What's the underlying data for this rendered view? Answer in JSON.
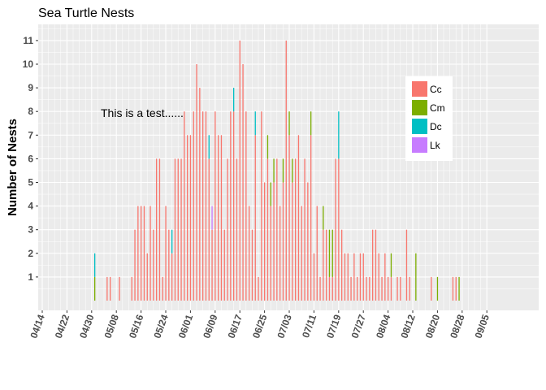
{
  "chart_data": {
    "type": "bar",
    "title": "Sea Turtle Nests",
    "xlabel": "",
    "ylabel": "Number of Nests",
    "annotation": "This is a test......",
    "ylim": [
      0,
      11.6
    ],
    "yticks": [
      1,
      2,
      3,
      4,
      5,
      6,
      7,
      8,
      9,
      10,
      11
    ],
    "x_start": "04/14",
    "x_end": "09/05",
    "xtick_labels": [
      "04/14",
      "04/22",
      "04/30",
      "05/08",
      "05/16",
      "05/24",
      "06/01",
      "06/09",
      "06/17",
      "06/25",
      "07/03",
      "07/11",
      "07/19",
      "07/27",
      "08/04",
      "08/12",
      "08/20",
      "08/28",
      "09/05"
    ],
    "grid": true,
    "legend_position": "top-right",
    "stacked": true,
    "series": [
      {
        "name": "Cc",
        "color": "#F8766D",
        "points": [
          [
            "05/05",
            1
          ],
          [
            "05/06",
            1
          ],
          [
            "05/09",
            1
          ],
          [
            "05/13",
            1
          ],
          [
            "05/14",
            3
          ],
          [
            "05/15",
            4
          ],
          [
            "05/16",
            4
          ],
          [
            "05/17",
            4
          ],
          [
            "05/18",
            2
          ],
          [
            "05/19",
            4
          ],
          [
            "05/20",
            3
          ],
          [
            "05/21",
            6
          ],
          [
            "05/22",
            6
          ],
          [
            "05/23",
            1
          ],
          [
            "05/24",
            4
          ],
          [
            "05/25",
            3
          ],
          [
            "05/26",
            2
          ],
          [
            "05/27",
            6
          ],
          [
            "05/28",
            6
          ],
          [
            "05/29",
            6
          ],
          [
            "05/30",
            8
          ],
          [
            "05/31",
            7
          ],
          [
            "06/01",
            7
          ],
          [
            "06/02",
            8
          ],
          [
            "06/03",
            10
          ],
          [
            "06/04",
            9
          ],
          [
            "06/05",
            8
          ],
          [
            "06/06",
            8
          ],
          [
            "06/07",
            6
          ],
          [
            "06/08",
            3
          ],
          [
            "06/09",
            8
          ],
          [
            "06/10",
            7
          ],
          [
            "06/11",
            7
          ],
          [
            "06/12",
            3
          ],
          [
            "06/13",
            6
          ],
          [
            "06/14",
            8
          ],
          [
            "06/15",
            8
          ],
          [
            "06/16",
            6
          ],
          [
            "06/17",
            11
          ],
          [
            "06/18",
            10
          ],
          [
            "06/19",
            8
          ],
          [
            "06/20",
            4
          ],
          [
            "06/21",
            3
          ],
          [
            "06/22",
            7
          ],
          [
            "06/23",
            1
          ],
          [
            "06/24",
            8
          ],
          [
            "06/25",
            5
          ],
          [
            "06/26",
            6
          ],
          [
            "06/27",
            4
          ],
          [
            "06/28",
            5
          ],
          [
            "06/29",
            6
          ],
          [
            "06/30",
            4
          ],
          [
            "07/01",
            5
          ],
          [
            "07/02",
            11
          ],
          [
            "07/03",
            7
          ],
          [
            "07/04",
            5
          ],
          [
            "07/05",
            6
          ],
          [
            "07/06",
            7
          ],
          [
            "07/07",
            4
          ],
          [
            "07/08",
            6
          ],
          [
            "07/09",
            5
          ],
          [
            "07/10",
            7
          ],
          [
            "07/11",
            2
          ],
          [
            "07/12",
            4
          ],
          [
            "07/13",
            1
          ],
          [
            "07/14",
            3
          ],
          [
            "07/15",
            3
          ],
          [
            "07/16",
            1
          ],
          [
            "07/17",
            1
          ],
          [
            "07/18",
            6
          ],
          [
            "07/19",
            6
          ],
          [
            "07/20",
            3
          ],
          [
            "07/21",
            2
          ],
          [
            "07/22",
            2
          ],
          [
            "07/23",
            1
          ],
          [
            "07/24",
            2
          ],
          [
            "07/25",
            1
          ],
          [
            "07/26",
            2
          ],
          [
            "07/27",
            2
          ],
          [
            "07/28",
            1
          ],
          [
            "07/29",
            1
          ],
          [
            "07/30",
            3
          ],
          [
            "07/31",
            3
          ],
          [
            "08/01",
            2
          ],
          [
            "08/02",
            1
          ],
          [
            "08/03",
            2
          ],
          [
            "08/04",
            1
          ],
          [
            "08/05",
            1
          ],
          [
            "08/07",
            1
          ],
          [
            "08/08",
            1
          ],
          [
            "08/10",
            3
          ],
          [
            "08/11",
            1
          ],
          [
            "08/18",
            1
          ],
          [
            "08/25",
            1
          ],
          [
            "08/26",
            1
          ]
        ]
      },
      {
        "name": "Cm",
        "color": "#7CAE00",
        "points": [
          [
            "05/01",
            1
          ],
          [
            "06/26",
            1
          ],
          [
            "06/27",
            1
          ],
          [
            "06/28",
            1
          ],
          [
            "07/01",
            1
          ],
          [
            "07/03",
            1
          ],
          [
            "07/04",
            1
          ],
          [
            "07/10",
            1
          ],
          [
            "07/14",
            1
          ],
          [
            "07/16",
            2
          ],
          [
            "07/17",
            2
          ],
          [
            "08/05",
            1
          ],
          [
            "08/13",
            2
          ],
          [
            "08/20",
            1
          ],
          [
            "08/27",
            1
          ]
        ]
      },
      {
        "name": "Dc",
        "color": "#00BFC4",
        "points": [
          [
            "05/01",
            1
          ],
          [
            "05/26",
            1
          ],
          [
            "06/07",
            1
          ],
          [
            "06/15",
            1
          ],
          [
            "06/22",
            1
          ],
          [
            "07/19",
            2
          ]
        ]
      },
      {
        "name": "Lk",
        "color": "#C77CFF",
        "points": [
          [
            "06/08",
            1
          ]
        ]
      }
    ]
  }
}
